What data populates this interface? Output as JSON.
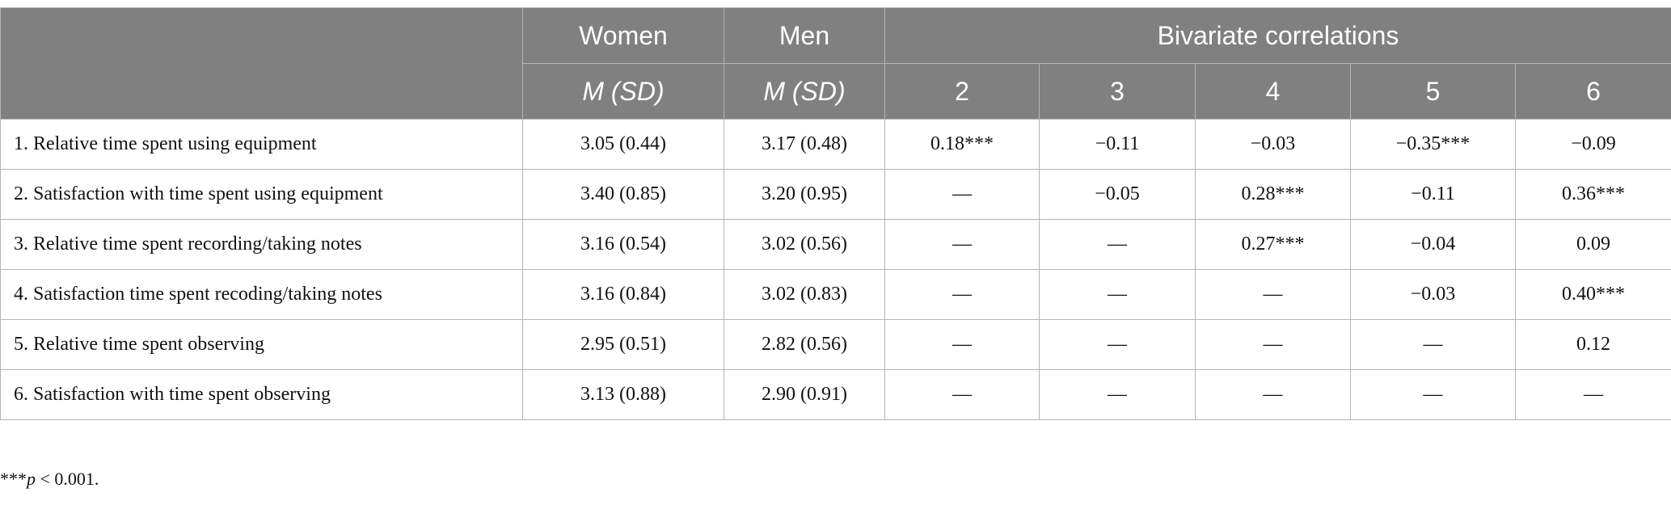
{
  "table": {
    "header": {
      "women": "Women",
      "men": "Men",
      "corr": "Bivariate correlations",
      "msd_w": "M (SD)",
      "msd_m": "M (SD)",
      "corr_cols": [
        "2",
        "3",
        "4",
        "5",
        "6"
      ]
    },
    "rows": [
      [
        "1.  Relative time spent using equipment",
        "3.05 (0.44)",
        "3.17 (0.48)",
        "0.18***",
        "−0.11",
        "−0.03",
        "−0.35***",
        "−0.09"
      ],
      [
        "2.  Satisfaction with time spent using equipment",
        "3.40 (0.85)",
        "3.20 (0.95)",
        "—",
        "−0.05",
        "0.28***",
        "−0.11",
        "0.36***"
      ],
      [
        "3.  Relative time spent recording/taking notes",
        "3.16 (0.54)",
        "3.02 (0.56)",
        "—",
        "—",
        "0.27***",
        "−0.04",
        "0.09"
      ],
      [
        "4.  Satisfaction time spent recoding/taking notes",
        "3.16 (0.84)",
        "3.02 (0.83)",
        "—",
        "—",
        "—",
        "−0.03",
        "0.40***"
      ],
      [
        "5.  Relative time spent observing",
        "2.95 (0.51)",
        "2.82 (0.56)",
        "—",
        "—",
        "—",
        "—",
        "0.12"
      ],
      [
        "6.  Satisfaction with time spent observing",
        "3.13 (0.88)",
        "2.90 (0.91)",
        "—",
        "—",
        "—",
        "—",
        "—"
      ]
    ]
  },
  "footnote": {
    "stars": "***",
    "p": "p",
    "rest": " < 0.001."
  }
}
